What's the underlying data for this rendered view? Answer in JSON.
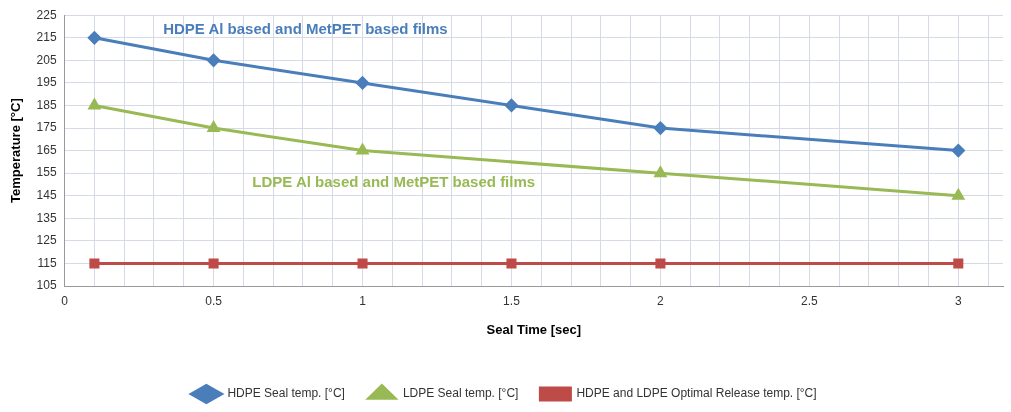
{
  "chart_data": {
    "type": "line",
    "xlabel": "Seal Time [sec]",
    "ylabel": "Temperature [°C]",
    "xlim": [
      0,
      3.15
    ],
    "xticks": [
      0,
      {
        "value": 0.1,
        "label": null
      },
      {
        "value": 0.2,
        "label": null
      },
      {
        "value": 0.3,
        "label": null
      },
      {
        "value": 0.4,
        "label": null
      },
      0.5,
      {
        "value": 0.6,
        "label": null
      },
      {
        "value": 0.7,
        "label": null
      },
      {
        "value": 0.8,
        "label": null
      },
      {
        "value": 0.9,
        "label": null
      },
      1,
      {
        "value": 1.1,
        "label": null
      },
      {
        "value": 1.2,
        "label": null
      },
      {
        "value": 1.3,
        "label": null
      },
      {
        "value": 1.4,
        "label": null
      },
      1.5,
      {
        "value": 1.6,
        "label": null
      },
      {
        "value": 1.7,
        "label": null
      },
      {
        "value": 1.8,
        "label": null
      },
      {
        "value": 1.9,
        "label": null
      },
      2,
      {
        "value": 2.1,
        "label": null
      },
      {
        "value": 2.2,
        "label": null
      },
      {
        "value": 2.3,
        "label": null
      },
      {
        "value": 2.4,
        "label": null
      },
      2.5,
      {
        "value": 2.6,
        "label": null
      },
      {
        "value": 2.7,
        "label": null
      },
      {
        "value": 2.8,
        "label": null
      },
      {
        "value": 2.9,
        "label": null
      },
      3,
      {
        "value": 3.1,
        "label": null
      }
    ],
    "ylim": [
      105,
      225
    ],
    "yticks": [
      105,
      115,
      125,
      135,
      145,
      155,
      165,
      175,
      185,
      195,
      205,
      215,
      225
    ],
    "grid": true,
    "legend": "bottom",
    "series": [
      {
        "name": "HDPE Seal temp. [°C]",
        "color": "#4a7ebb",
        "marker": "diamond",
        "x": [
          0.1,
          0.5,
          1,
          1.5,
          2,
          3
        ],
        "values": [
          215,
          205,
          195,
          185,
          175,
          165
        ]
      },
      {
        "name": "LDPE Seal temp. [°C]",
        "color": "#98b954",
        "marker": "triangle",
        "x": [
          0.1,
          0.5,
          1,
          2,
          3
        ],
        "values": [
          185,
          175,
          165,
          155,
          145
        ]
      },
      {
        "name": "HDPE and LDPE Optimal Release temp. [°C]",
        "color": "#be4b48",
        "marker": "square",
        "x": [
          0.1,
          0.5,
          1,
          1.5,
          2,
          3
        ],
        "values": [
          115,
          115,
          115,
          115,
          115,
          115
        ]
      }
    ],
    "annotations": [
      "HDPE Al based and MetPET based films",
      "LDPE Al based and MetPET based films"
    ]
  }
}
